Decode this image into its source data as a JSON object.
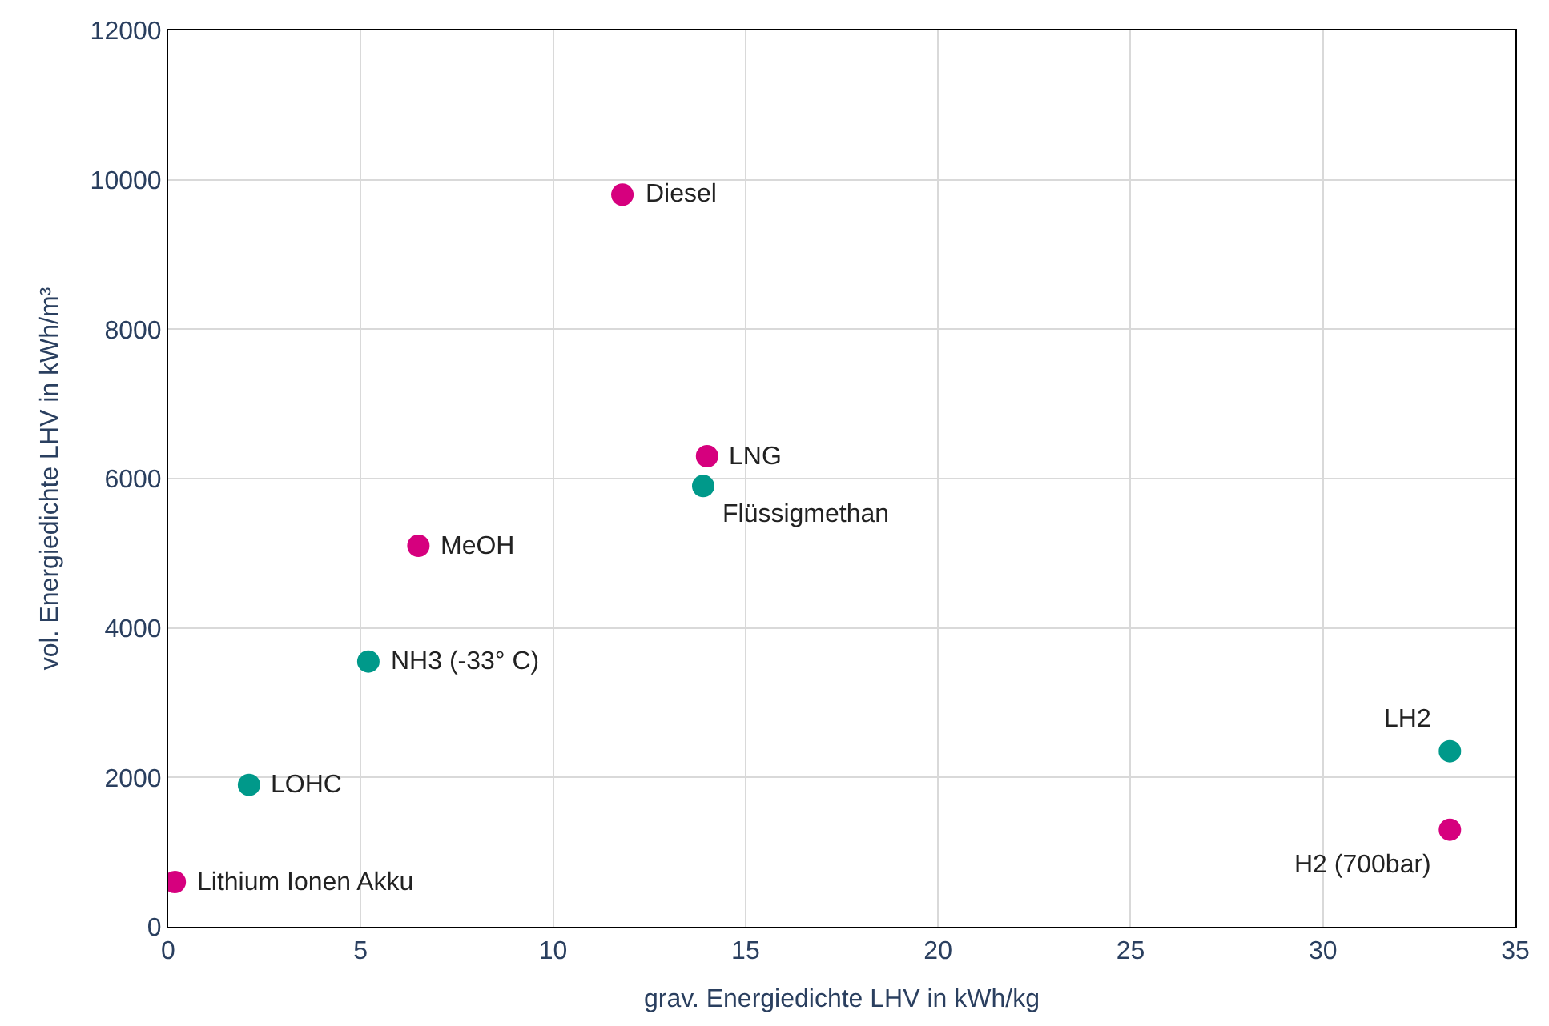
{
  "chart_data": {
    "type": "scatter",
    "xlabel": "grav. Energiedichte LHV in kWh/kg",
    "ylabel": "vol. Energiedichte LHV in kWh/m³",
    "xlim": [
      0,
      35
    ],
    "xticks": [
      0,
      5,
      10,
      15,
      20,
      25,
      30,
      35
    ],
    "ylim": [
      0,
      12000
    ],
    "yticks": [
      0,
      2000,
      4000,
      6000,
      8000,
      10000,
      12000
    ],
    "grid": true,
    "marker": "circle",
    "series": [
      {
        "color": "#d6007e",
        "x": [
          0.17,
          6.5,
          11.8,
          14.0,
          33.3
        ],
        "values": [
          600,
          5100,
          9800,
          6300,
          1300
        ]
      },
      {
        "color": "#00998a",
        "x": [
          2.1,
          5.2,
          13.9,
          33.3
        ],
        "values": [
          1900,
          3550,
          5900,
          2350
        ]
      }
    ],
    "annotations": [
      {
        "text": "Lithium Ionen Akku",
        "x": 0.17,
        "y": 600
      },
      {
        "text": "LOHC",
        "x": 2.1,
        "y": 1900
      },
      {
        "text": "NH3 (-33° C)",
        "x": 5.2,
        "y": 3550
      },
      {
        "text": "MeOH",
        "x": 6.5,
        "y": 5100
      },
      {
        "text": "Diesel",
        "x": 11.8,
        "y": 9800
      },
      {
        "text": "LNG",
        "x": 14.0,
        "y": 6300
      },
      {
        "text": "Flüssigmethan",
        "x": 13.9,
        "y": 5900
      },
      {
        "text": "LH2",
        "x": 33.3,
        "y": 2350
      },
      {
        "text": "H2 (700bar)",
        "x": 33.3,
        "y": 1300
      }
    ]
  }
}
